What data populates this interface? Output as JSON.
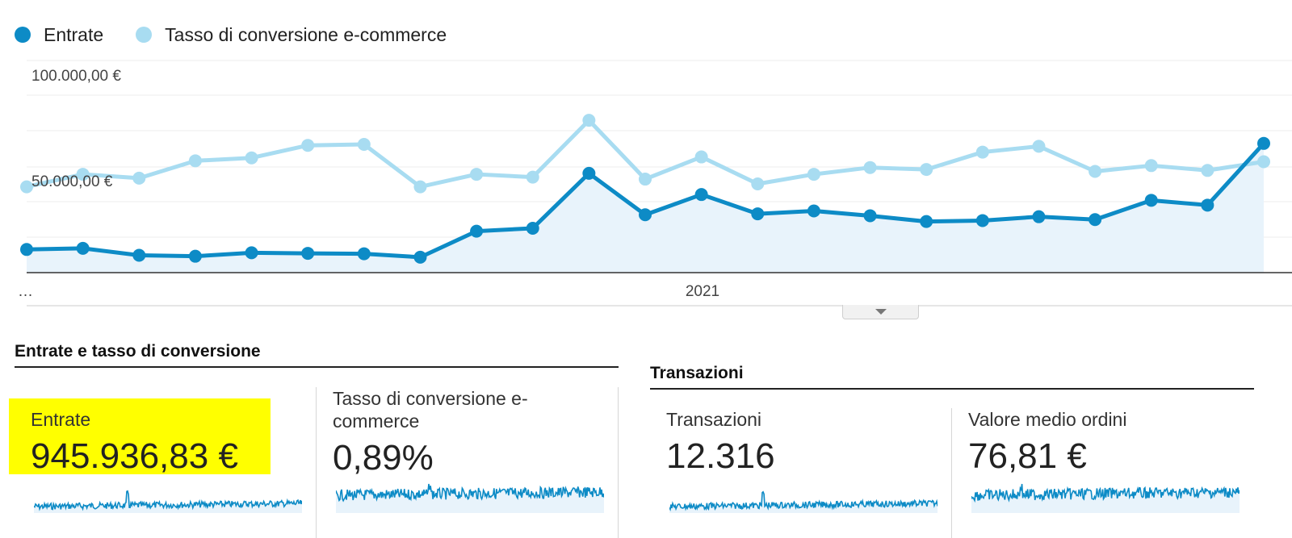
{
  "legend": [
    {
      "label": "Entrate",
      "color": "#0d8bc6"
    },
    {
      "label": "Tasso di conversione e-commerce",
      "color": "#a8dcf1"
    }
  ],
  "chart_data": {
    "type": "line",
    "y_ticks": [
      "100.000,00 €",
      "50.000,00 €"
    ],
    "x_label_left": "…",
    "x_label_center": "2021",
    "ylim": [
      0,
      110000
    ],
    "series": [
      {
        "name": "Entrate",
        "color": "#0d8bc6",
        "values": [
          12000,
          12600,
          9000,
          8500,
          10300,
          10000,
          9800,
          8000,
          21500,
          23000,
          51500,
          30000,
          40500,
          30500,
          32000,
          29500,
          26500,
          27000,
          29000,
          27500,
          37500,
          35000,
          67000
        ],
        "area": true
      },
      {
        "name": "Tasso di conversione e-commerce",
        "color": "#a8dcf1",
        "values": [
          44500,
          51000,
          49000,
          58000,
          59500,
          66000,
          66500,
          44500,
          51000,
          49500,
          79000,
          48500,
          60000,
          46000,
          51000,
          54500,
          53500,
          62500,
          65500,
          52500,
          55500,
          53000,
          57500
        ]
      }
    ]
  },
  "sections": {
    "revenue_title": "Entrate e tasso di conversione",
    "transactions_title": "Transazioni"
  },
  "metrics": [
    {
      "label": "Entrate",
      "value": "945.936,83 €"
    },
    {
      "label": "Tasso di conversione e-commerce",
      "value": "0,89%"
    },
    {
      "label": "Transazioni",
      "value": "12.316"
    },
    {
      "label": "Valore medio ordini",
      "value": "76,81 €"
    }
  ],
  "colors": {
    "primary": "#0d8bc6",
    "secondary": "#a8dcf1",
    "area_fill": "#e8f3fb",
    "highlight": "#ffff00"
  }
}
